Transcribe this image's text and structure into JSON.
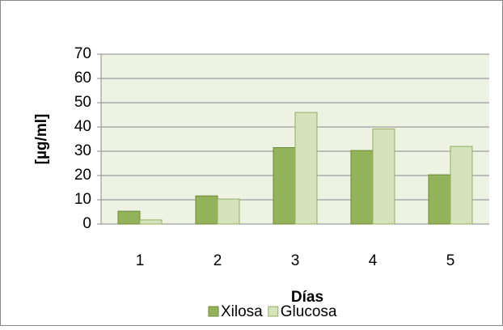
{
  "chart_data": {
    "type": "bar",
    "categories": [
      "1",
      "2",
      "3",
      "4",
      "5"
    ],
    "series": [
      {
        "name": "Xilosa",
        "color": "#93b35a",
        "values": [
          5.3,
          11.6,
          31.5,
          30.3,
          20.3
        ]
      },
      {
        "name": "Glucosa",
        "color": "#d5e3bb",
        "values": [
          1.7,
          10.3,
          46,
          39.2,
          32
        ]
      }
    ],
    "ylabel": "[µg/ml]",
    "xlabel": "Días",
    "ylim": [
      0,
      70
    ],
    "yticks": [
      0,
      10,
      20,
      30,
      40,
      50,
      60,
      70
    ],
    "grid": true,
    "legend": "bottom"
  }
}
